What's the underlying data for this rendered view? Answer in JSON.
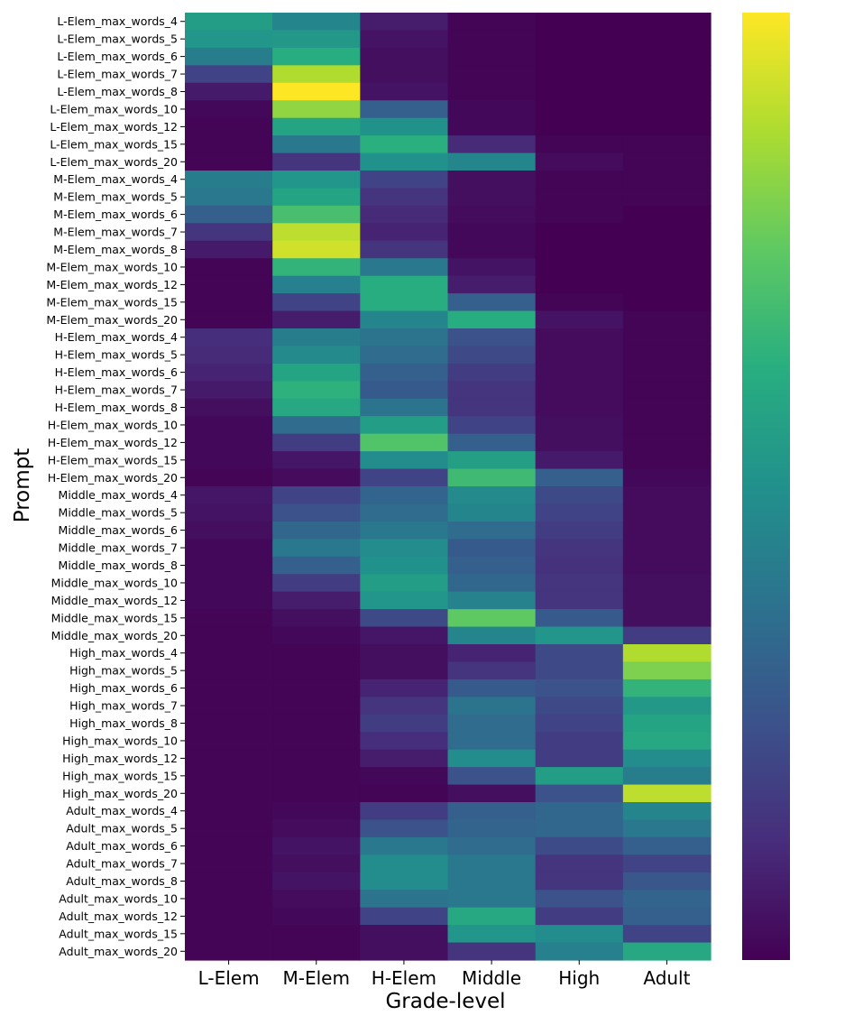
{
  "chart_data": {
    "type": "heatmap",
    "title": "",
    "xlabel": "Grade-level",
    "ylabel": "Prompt",
    "columns": [
      "L-Elem",
      "M-Elem",
      "H-Elem",
      "Middle",
      "High",
      "Adult"
    ],
    "rows": [
      "L-Elem_max_words_4",
      "L-Elem_max_words_5",
      "L-Elem_max_words_6",
      "L-Elem_max_words_7",
      "L-Elem_max_words_8",
      "L-Elem_max_words_10",
      "L-Elem_max_words_12",
      "L-Elem_max_words_15",
      "L-Elem_max_words_20",
      "M-Elem_max_words_4",
      "M-Elem_max_words_5",
      "M-Elem_max_words_6",
      "M-Elem_max_words_7",
      "M-Elem_max_words_8",
      "M-Elem_max_words_10",
      "M-Elem_max_words_12",
      "M-Elem_max_words_15",
      "M-Elem_max_words_20",
      "H-Elem_max_words_4",
      "H-Elem_max_words_5",
      "H-Elem_max_words_6",
      "H-Elem_max_words_7",
      "H-Elem_max_words_8",
      "H-Elem_max_words_10",
      "H-Elem_max_words_12",
      "H-Elem_max_words_15",
      "H-Elem_max_words_20",
      "Middle_max_words_4",
      "Middle_max_words_5",
      "Middle_max_words_6",
      "Middle_max_words_7",
      "Middle_max_words_8",
      "Middle_max_words_10",
      "Middle_max_words_12",
      "Middle_max_words_15",
      "Middle_max_words_20",
      "High_max_words_4",
      "High_max_words_5",
      "High_max_words_6",
      "High_max_words_7",
      "High_max_words_8",
      "High_max_words_10",
      "High_max_words_12",
      "High_max_words_15",
      "High_max_words_20",
      "Adult_max_words_4",
      "Adult_max_words_5",
      "Adult_max_words_6",
      "Adult_max_words_7",
      "Adult_max_words_8",
      "Adult_max_words_10",
      "Adult_max_words_12",
      "Adult_max_words_15",
      "Adult_max_words_20"
    ],
    "values": [
      [
        0.55,
        0.45,
        0.08,
        0.01,
        0.0,
        0.0
      ],
      [
        0.52,
        0.53,
        0.05,
        0.01,
        0.0,
        0.0
      ],
      [
        0.42,
        0.62,
        0.04,
        0.01,
        0.0,
        0.0
      ],
      [
        0.2,
        0.88,
        0.04,
        0.01,
        0.0,
        0.0
      ],
      [
        0.07,
        1.0,
        0.05,
        0.01,
        0.0,
        0.0
      ],
      [
        0.02,
        0.83,
        0.3,
        0.02,
        0.0,
        0.0
      ],
      [
        0.01,
        0.58,
        0.5,
        0.02,
        0.0,
        0.0
      ],
      [
        0.01,
        0.4,
        0.63,
        0.12,
        0.01,
        0.01
      ],
      [
        0.01,
        0.15,
        0.5,
        0.45,
        0.03,
        0.01
      ],
      [
        0.42,
        0.52,
        0.2,
        0.04,
        0.01,
        0.01
      ],
      [
        0.4,
        0.58,
        0.15,
        0.04,
        0.01,
        0.01
      ],
      [
        0.3,
        0.7,
        0.12,
        0.03,
        0.01,
        0.0
      ],
      [
        0.15,
        0.9,
        0.1,
        0.02,
        0.0,
        0.0
      ],
      [
        0.07,
        0.93,
        0.15,
        0.02,
        0.0,
        0.0
      ],
      [
        0.01,
        0.65,
        0.4,
        0.05,
        0.0,
        0.0
      ],
      [
        0.01,
        0.43,
        0.62,
        0.08,
        0.0,
        0.0
      ],
      [
        0.01,
        0.2,
        0.62,
        0.3,
        0.01,
        0.0
      ],
      [
        0.01,
        0.08,
        0.45,
        0.62,
        0.05,
        0.01
      ],
      [
        0.13,
        0.42,
        0.38,
        0.25,
        0.03,
        0.01
      ],
      [
        0.12,
        0.47,
        0.35,
        0.22,
        0.03,
        0.01
      ],
      [
        0.1,
        0.58,
        0.3,
        0.18,
        0.03,
        0.01
      ],
      [
        0.07,
        0.64,
        0.28,
        0.15,
        0.03,
        0.01
      ],
      [
        0.04,
        0.6,
        0.38,
        0.15,
        0.03,
        0.01
      ],
      [
        0.02,
        0.35,
        0.55,
        0.2,
        0.04,
        0.01
      ],
      [
        0.02,
        0.18,
        0.72,
        0.3,
        0.04,
        0.01
      ],
      [
        0.02,
        0.06,
        0.48,
        0.56,
        0.07,
        0.01
      ],
      [
        0.01,
        0.03,
        0.2,
        0.68,
        0.3,
        0.02
      ],
      [
        0.06,
        0.2,
        0.32,
        0.47,
        0.22,
        0.03
      ],
      [
        0.05,
        0.25,
        0.35,
        0.45,
        0.2,
        0.03
      ],
      [
        0.04,
        0.33,
        0.4,
        0.35,
        0.18,
        0.03
      ],
      [
        0.02,
        0.4,
        0.48,
        0.28,
        0.15,
        0.03
      ],
      [
        0.02,
        0.3,
        0.5,
        0.3,
        0.14,
        0.03
      ],
      [
        0.02,
        0.18,
        0.55,
        0.33,
        0.15,
        0.04
      ],
      [
        0.02,
        0.08,
        0.52,
        0.44,
        0.15,
        0.04
      ],
      [
        0.01,
        0.04,
        0.22,
        0.75,
        0.28,
        0.04
      ],
      [
        0.01,
        0.02,
        0.06,
        0.45,
        0.52,
        0.18
      ],
      [
        0.01,
        0.01,
        0.04,
        0.1,
        0.22,
        0.88
      ],
      [
        0.01,
        0.01,
        0.04,
        0.15,
        0.22,
        0.8
      ],
      [
        0.01,
        0.01,
        0.1,
        0.28,
        0.25,
        0.65
      ],
      [
        0.01,
        0.01,
        0.15,
        0.38,
        0.22,
        0.53
      ],
      [
        0.01,
        0.01,
        0.18,
        0.35,
        0.2,
        0.58
      ],
      [
        0.01,
        0.01,
        0.13,
        0.35,
        0.18,
        0.6
      ],
      [
        0.01,
        0.01,
        0.08,
        0.48,
        0.18,
        0.48
      ],
      [
        0.01,
        0.01,
        0.02,
        0.25,
        0.55,
        0.42
      ],
      [
        0.01,
        0.01,
        0.01,
        0.04,
        0.25,
        0.9
      ],
      [
        0.01,
        0.02,
        0.18,
        0.3,
        0.33,
        0.45
      ],
      [
        0.01,
        0.03,
        0.25,
        0.32,
        0.33,
        0.4
      ],
      [
        0.01,
        0.05,
        0.4,
        0.35,
        0.23,
        0.3
      ],
      [
        0.01,
        0.04,
        0.48,
        0.4,
        0.15,
        0.2
      ],
      [
        0.01,
        0.05,
        0.48,
        0.4,
        0.15,
        0.27
      ],
      [
        0.01,
        0.03,
        0.38,
        0.4,
        0.25,
        0.32
      ],
      [
        0.01,
        0.02,
        0.2,
        0.6,
        0.18,
        0.3
      ],
      [
        0.01,
        0.01,
        0.04,
        0.52,
        0.48,
        0.2
      ],
      [
        0.01,
        0.01,
        0.04,
        0.15,
        0.43,
        0.6
      ]
    ],
    "colormap": "viridis",
    "colorbar": {
      "range": [
        0,
        1
      ],
      "tick_labels": []
    },
    "colors": {
      "low": "#440154",
      "mid": "#21918c",
      "high": "#fde725"
    }
  }
}
